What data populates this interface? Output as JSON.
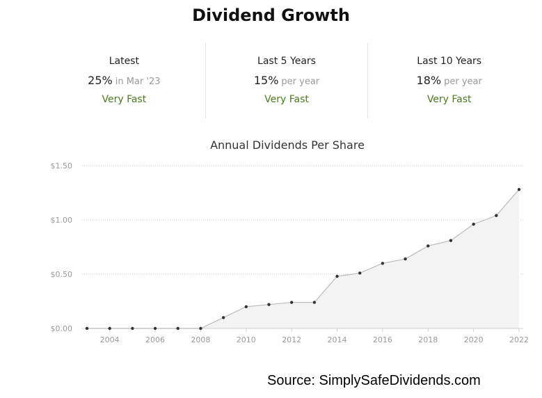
{
  "header": {
    "title": "Dividend Growth"
  },
  "stats": [
    {
      "label": "Latest",
      "value": "25%",
      "suffix": "in Mar '23",
      "rating": "Very Fast"
    },
    {
      "label": "Last 5 Years",
      "value": "15%",
      "suffix": "per year",
      "rating": "Very Fast"
    },
    {
      "label": "Last 10 Years",
      "value": "18%",
      "suffix": "per year",
      "rating": "Very Fast"
    }
  ],
  "chart_data": {
    "type": "area",
    "title": "Annual Dividends Per Share",
    "xlabel": "",
    "ylabel": "",
    "x": [
      2003,
      2004,
      2005,
      2006,
      2007,
      2008,
      2009,
      2010,
      2011,
      2012,
      2013,
      2014,
      2015,
      2016,
      2017,
      2018,
      2019,
      2020,
      2021,
      2022
    ],
    "series": [
      {
        "values": [
          0,
          0,
          0,
          0,
          0,
          0,
          0.1,
          0.2,
          0.22,
          0.24,
          0.24,
          0.48,
          0.51,
          0.6,
          0.64,
          0.76,
          0.81,
          0.96,
          1.04,
          1.28
        ]
      }
    ],
    "x_ticks": [
      2004,
      2006,
      2008,
      2010,
      2012,
      2014,
      2016,
      2018,
      2020,
      2022
    ],
    "y_ticks": [
      0,
      0.5,
      1.0,
      1.5
    ],
    "y_tick_labels": [
      "$0.00",
      "$0.50",
      "$1.00",
      "$1.50"
    ],
    "ylim": [
      0,
      1.5
    ],
    "xlim": [
      2003,
      2022
    ],
    "grid": "horizontal dotted",
    "colors": {
      "line": "#bbbbbb",
      "area": "#f3f3f3",
      "marker": "#333333",
      "grid": "#c8c8c8",
      "rating": "#4c7a1f"
    }
  },
  "footer": {
    "source": "Source: SimplySafeDividends.com"
  }
}
